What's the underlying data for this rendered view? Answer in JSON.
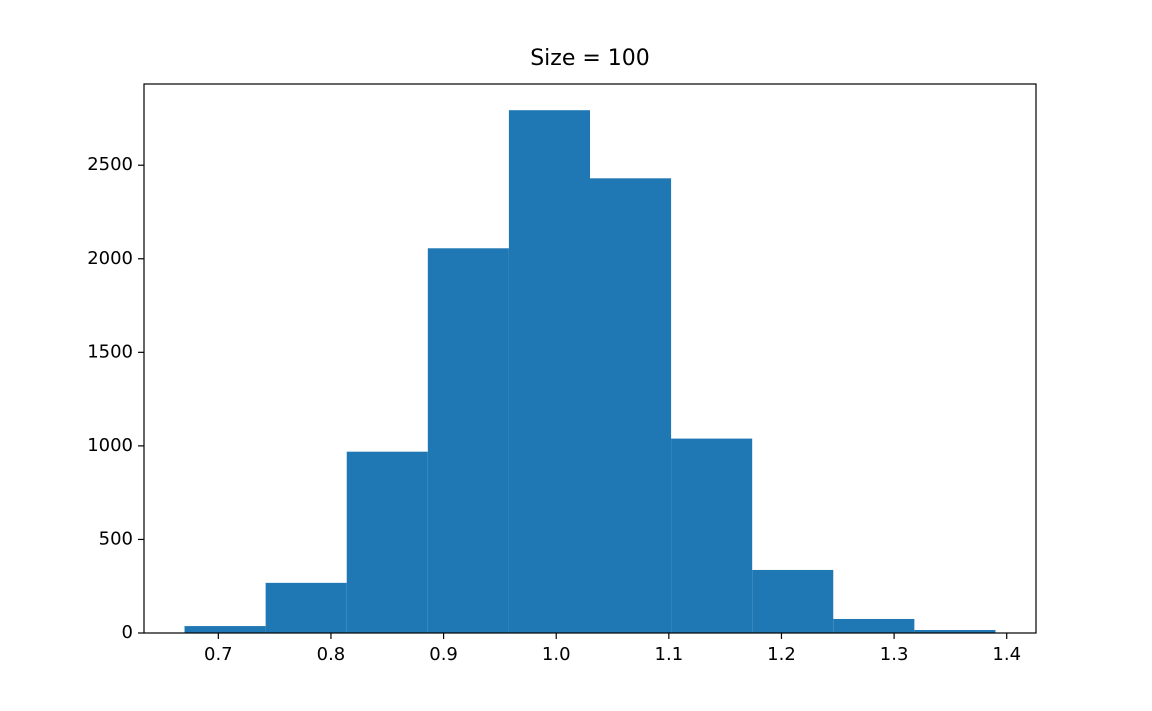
{
  "chart_data": {
    "type": "histogram",
    "title": "Size = 100",
    "bins": [
      0.67,
      0.742,
      0.814,
      0.886,
      0.958,
      1.03,
      1.102,
      1.174,
      1.246,
      1.318,
      1.39
    ],
    "values": [
      37,
      268,
      969,
      2056,
      2794,
      2430,
      1039,
      337,
      75,
      16
    ],
    "color": "#1f77b4",
    "xlim": [
      0.634,
      1.426
    ],
    "xticks": [
      0.7,
      0.8,
      0.9,
      {
        "value": 1,
        "label": "1.0"
      },
      1.1,
      1.2,
      1.3,
      1.4
    ],
    "ylim": [
      0,
      2934
    ],
    "yticks": [
      0,
      500,
      1000,
      1500,
      2000,
      2500
    ],
    "grid": false
  }
}
